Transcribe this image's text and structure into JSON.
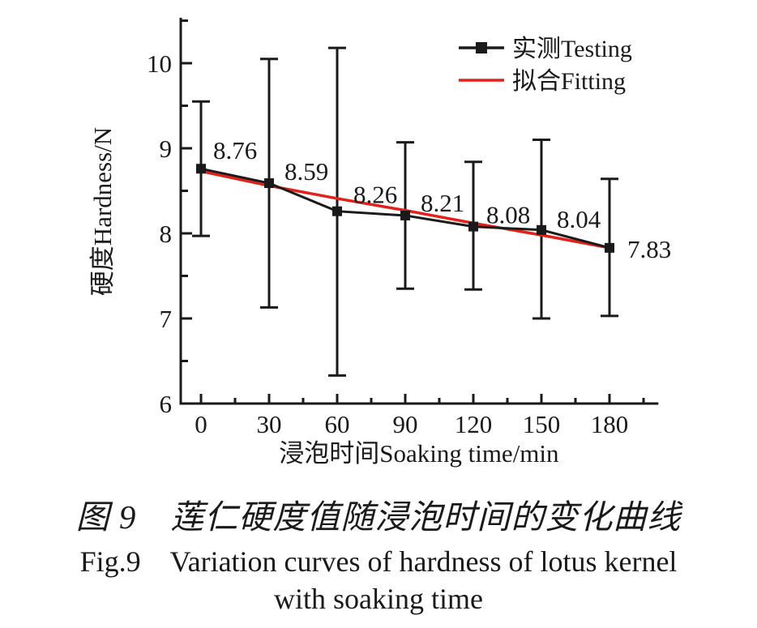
{
  "chart_data": {
    "type": "line",
    "title": "",
    "xlabel": "浸泡时间Soaking time/min",
    "ylabel": "硬度Hardness/N",
    "x": [
      0,
      30,
      60,
      90,
      120,
      150,
      180
    ],
    "x_ticks": [
      "0",
      "30",
      "60",
      "90",
      "120",
      "150",
      "180"
    ],
    "x_minor_ticks": [
      15,
      45,
      75,
      105,
      135,
      165,
      195
    ],
    "y_ticks": [
      "6",
      "7",
      "8",
      "9",
      "10"
    ],
    "y_tick_values": [
      6,
      7,
      8,
      9,
      10
    ],
    "y_minor_ticks": [
      6.5,
      7.5,
      8.5,
      9.5,
      10.5
    ],
    "xlim": [
      -9,
      201
    ],
    "ylim": [
      6,
      10.52
    ],
    "grid": false,
    "legend_position": "top-right",
    "series": [
      {
        "name": "实测Testing",
        "kind": "line-marker-errorbar",
        "color": "#1a1a1a",
        "values": [
          8.76,
          8.59,
          8.26,
          8.21,
          8.08,
          8.04,
          7.83
        ],
        "error_low": [
          7.97,
          7.13,
          6.33,
          7.35,
          7.34,
          7.0,
          7.03
        ],
        "error_high": [
          9.55,
          10.05,
          10.18,
          9.07,
          8.84,
          9.1,
          8.64
        ],
        "point_labels": [
          "8.76",
          "8.59",
          "8.26",
          "8.21",
          "8.08",
          "8.04",
          "7.83"
        ]
      },
      {
        "name": "拟合Fitting",
        "kind": "line",
        "color": "#e32119",
        "values": [
          8.73,
          8.56,
          8.41,
          8.27,
          8.12,
          7.98,
          7.83
        ]
      }
    ]
  },
  "caption": {
    "line1": "图 9　莲仁硬度值随浸泡时间的变化曲线",
    "line2": "Fig.9　Variation curves of hardness of lotus kernel",
    "line3": "with soaking time"
  }
}
